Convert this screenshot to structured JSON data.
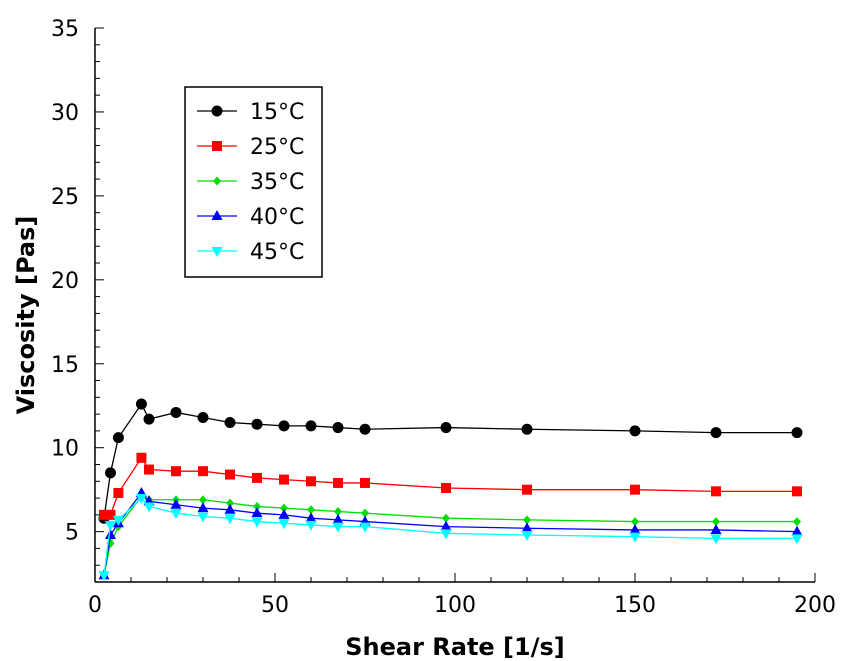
{
  "chart_data": {
    "type": "line",
    "title": "",
    "xlabel": "Shear Rate [1/s]",
    "ylabel": "Viscosity [Pas]",
    "xlim": [
      0,
      200
    ],
    "ylim": [
      2,
      35
    ],
    "xticks": [
      "0",
      "50",
      "100",
      "150",
      "200"
    ],
    "yticks": [
      "5",
      "10",
      "15",
      "20",
      "25",
      "30",
      "35"
    ],
    "grid": false,
    "legend": "top-left",
    "x": [
      2.5,
      4.3,
      6.5,
      12.9,
      15,
      22.5,
      30,
      37.5,
      45,
      52.5,
      60,
      67.5,
      75,
      97.5,
      120,
      150,
      172.5,
      195
    ],
    "series": [
      {
        "name": "15°C",
        "color": "#000000",
        "marker": "circle",
        "values": [
          5.8,
          8.5,
          10.6,
          12.6,
          11.7,
          12.1,
          11.8,
          11.5,
          11.4,
          11.3,
          11.3,
          11.2,
          11.1,
          11.2,
          11.1,
          11.0,
          10.9,
          10.9
        ]
      },
      {
        "name": "25°C",
        "color": "#ff0000",
        "marker": "square",
        "values": [
          6.0,
          6.0,
          7.3,
          9.4,
          8.7,
          8.6,
          8.6,
          8.4,
          8.2,
          8.1,
          8.0,
          7.9,
          7.9,
          7.6,
          7.5,
          7.5,
          7.4,
          7.4
        ]
      },
      {
        "name": "35°C",
        "color": "#00dd00",
        "marker": "diamond",
        "values": [
          2.4,
          4.3,
          5.3,
          7.1,
          6.9,
          6.9,
          6.9,
          6.7,
          6.5,
          6.4,
          6.3,
          6.2,
          6.1,
          5.8,
          5.7,
          5.6,
          5.6,
          5.6
        ]
      },
      {
        "name": "40°C",
        "color": "#0000ff",
        "marker": "triangle-up",
        "values": [
          2.4,
          4.8,
          5.5,
          7.3,
          6.8,
          6.6,
          6.4,
          6.3,
          6.1,
          6.0,
          5.8,
          5.7,
          5.6,
          5.3,
          5.2,
          5.1,
          5.1,
          5.0
        ]
      },
      {
        "name": "45°C",
        "color": "#00ffff",
        "marker": "triangle-down",
        "values": [
          2.4,
          5.4,
          5.7,
          7.0,
          6.5,
          6.1,
          5.9,
          5.8,
          5.6,
          5.5,
          5.4,
          5.3,
          5.3,
          4.9,
          4.8,
          4.7,
          4.6,
          4.6
        ]
      }
    ]
  }
}
